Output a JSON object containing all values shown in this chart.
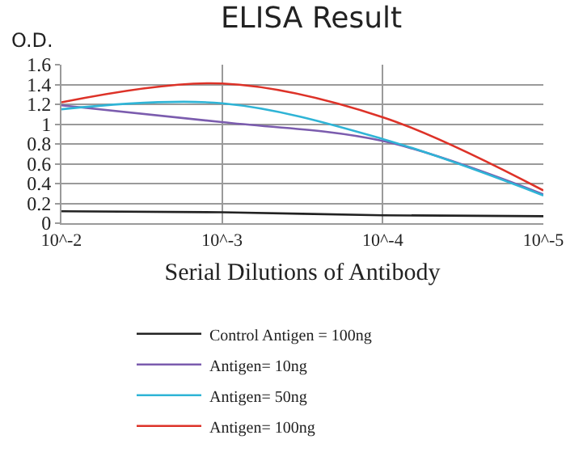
{
  "chart_data": {
    "type": "line",
    "title": "ELISA Result",
    "ylabel": "O.D.",
    "xlabel": "Serial Dilutions of Antibody",
    "categories": [
      "10^-2",
      "10^-3",
      "10^-4",
      "10^-5"
    ],
    "series": [
      {
        "name": "Control Antigen = 100ng",
        "color": "#222222",
        "values": [
          0.12,
          0.11,
          0.08,
          0.07
        ]
      },
      {
        "name": "Antigen= 10ng",
        "color": "#7b5cae",
        "values": [
          1.19,
          1.02,
          0.83,
          0.29
        ]
      },
      {
        "name": "Antigen= 50ng",
        "color": "#2fb4d6",
        "values": [
          1.15,
          1.21,
          0.85,
          0.28
        ]
      },
      {
        "name": "Antigen= 100ng",
        "color": "#dd3228",
        "values": [
          1.22,
          1.41,
          1.07,
          0.33
        ]
      }
    ],
    "ylim": [
      0,
      1.6
    ],
    "yticks": [
      0,
      0.2,
      0.4,
      0.6,
      0.8,
      1,
      1.2,
      1.4,
      1.6
    ],
    "grid": true,
    "legend": "bottom",
    "marker": "none",
    "line_style": "solid"
  }
}
